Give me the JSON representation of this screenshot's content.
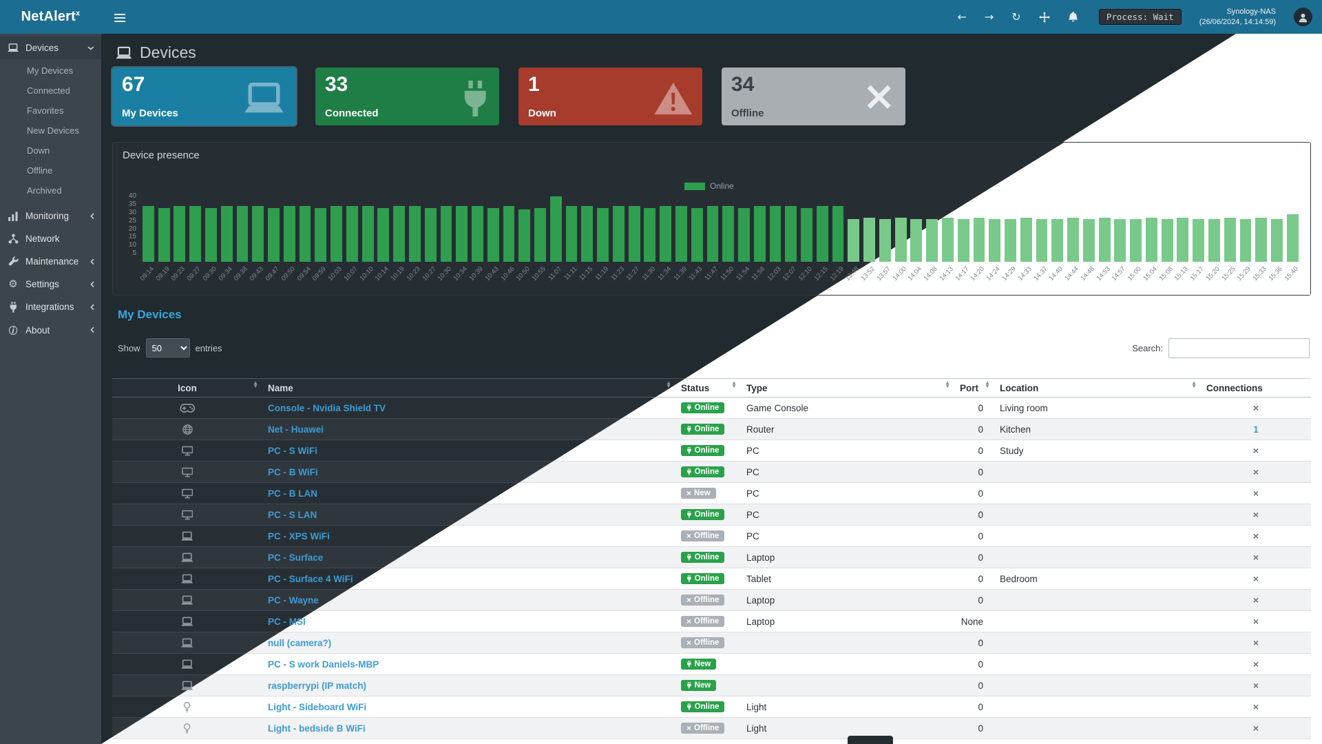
{
  "topbar": {
    "brand": "NetAlert",
    "brand_sup": "x",
    "process_label": "Process: Wait",
    "host": "Synology-NAS",
    "timestamp": "(26/06/2024, 14:14:59)",
    "icons": [
      "back-arrow-icon",
      "forward-arrow-icon",
      "refresh-icon",
      "move-icon",
      "bell-icon"
    ]
  },
  "sidebar": {
    "items": [
      {
        "label": "Devices",
        "icon": "laptop-icon",
        "active": true,
        "chevron": "down",
        "children": [
          "My Devices",
          "Connected",
          "Favorites",
          "New Devices",
          "Down",
          "Offline",
          "Archived"
        ]
      },
      {
        "label": "Monitoring",
        "icon": "chart-icon",
        "chevron": "left"
      },
      {
        "label": "Network",
        "icon": "network-icon",
        "chevron": ""
      },
      {
        "label": "Maintenance",
        "icon": "wrench-icon",
        "chevron": "left"
      },
      {
        "label": "Settings",
        "icon": "gear-icon",
        "chevron": "left"
      },
      {
        "label": "Integrations",
        "icon": "plug-icon",
        "chevron": "left"
      },
      {
        "label": "About",
        "icon": "info-icon",
        "chevron": "left"
      }
    ]
  },
  "page": {
    "title": "Devices"
  },
  "cards": [
    {
      "value": "67",
      "label": "My Devices",
      "icon": "laptop-icon",
      "color": "#1b7fa4"
    },
    {
      "value": "33",
      "label": "Connected",
      "icon": "plug-icon",
      "color": "#1e7e46"
    },
    {
      "value": "1",
      "label": "Down",
      "icon": "warning-icon",
      "color": "#a73b2c"
    },
    {
      "value": "34",
      "label": "Offline",
      "icon": "x-icon",
      "color": "#a9aeb3"
    }
  ],
  "chart_data": {
    "type": "bar",
    "title": "Device presence",
    "legend": [
      {
        "label": "Online",
        "color": "#2f9e4f"
      }
    ],
    "legend_position": "top-center",
    "grid": false,
    "ylim": [
      0,
      40
    ],
    "yticks": [
      40,
      35,
      30,
      25,
      20,
      15,
      10,
      5
    ],
    "bar_color": "#2f9e4f",
    "bar_color_light_region": "#79c98b",
    "light_region_from_index": 45,
    "x": [
      "09:14",
      "09:19",
      "09:23",
      "09:27",
      "09:30",
      "09:34",
      "09:38",
      "09:43",
      "09:47",
      "09:50",
      "09:54",
      "09:59",
      "10:03",
      "10:07",
      "10:10",
      "10:14",
      "10:19",
      "10:23",
      "10:27",
      "10:30",
      "10:34",
      "10:39",
      "10:43",
      "10:46",
      "10:50",
      "10:55",
      "11:07",
      "11:11",
      "11:15",
      "11:19",
      "11:23",
      "11:27",
      "11:30",
      "11:34",
      "11:39",
      "11:43",
      "11:47",
      "11:50",
      "11:54",
      "11:58",
      "12:03",
      "12:07",
      "12:10",
      "12:15",
      "12:19",
      "13:48",
      "13:52",
      "13:57",
      "14:00",
      "14:04",
      "14:08",
      "14:13",
      "14:17",
      "14:20",
      "14:24",
      "14:29",
      "14:33",
      "14:37",
      "14:40",
      "14:44",
      "14:48",
      "14:53",
      "14:57",
      "15:00",
      "15:04",
      "15:08",
      "15:13",
      "15:17",
      "15:20",
      "15:25",
      "15:29",
      "15:33",
      "15:36",
      "15:40"
    ],
    "series": [
      {
        "name": "Online",
        "values": [
          34,
          33,
          34,
          34,
          33,
          34,
          34,
          34,
          33,
          34,
          34,
          33,
          34,
          34,
          34,
          33,
          34,
          34,
          33,
          34,
          34,
          34,
          33,
          34,
          32,
          33,
          40,
          34,
          34,
          33,
          34,
          34,
          33,
          34,
          34,
          33,
          34,
          34,
          33,
          34,
          34,
          34,
          33,
          34,
          34,
          26,
          27,
          26,
          27,
          26,
          26,
          27,
          26,
          27,
          26,
          26,
          27,
          26,
          26,
          27,
          26,
          27,
          26,
          26,
          27,
          26,
          27,
          26,
          26,
          27,
          26,
          27,
          26,
          29
        ]
      }
    ]
  },
  "table": {
    "title": "My Devices",
    "show_label": "Show",
    "page_size": "50",
    "entries_label": "entries",
    "search_label": "Search:",
    "search_value": "",
    "columns": [
      "Icon",
      "Name",
      "Status",
      "Type",
      "Port",
      "Location",
      "Connections"
    ],
    "rows": [
      {
        "icon": "gamepad-icon",
        "name": "Console - Nvidia Shield TV",
        "status": "Online",
        "variant": "green",
        "type": "Game Console",
        "port": "0",
        "location": "Living room",
        "connections": "x"
      },
      {
        "icon": "globe-icon",
        "name": "Net - Huawei",
        "status": "Online",
        "variant": "green",
        "type": "Router",
        "port": "0",
        "location": "Kitchen",
        "connections": "1"
      },
      {
        "icon": "desktop-icon",
        "name": "PC - S WiFi",
        "status": "Online",
        "variant": "green",
        "type": "PC",
        "port": "0",
        "location": "Study",
        "connections": "x"
      },
      {
        "icon": "desktop-icon",
        "name": "PC - B WiFi",
        "status": "Online",
        "variant": "green",
        "type": "PC",
        "port": "0",
        "location": "",
        "connections": "x"
      },
      {
        "icon": "desktop-icon",
        "name": "PC - B LAN",
        "status": "New",
        "variant": "gray",
        "type": "PC",
        "port": "0",
        "location": "",
        "connections": "x"
      },
      {
        "icon": "desktop-icon",
        "name": "PC - S LAN",
        "status": "Online",
        "variant": "green",
        "type": "PC",
        "port": "0",
        "location": "",
        "connections": "x"
      },
      {
        "icon": "laptop-icon",
        "name": "PC - XPS WiFi",
        "status": "Offline",
        "variant": "gray",
        "type": "PC",
        "port": "0",
        "location": "",
        "connections": "x"
      },
      {
        "icon": "laptop-icon",
        "name": "PC - Surface",
        "status": "Online",
        "variant": "green",
        "type": "Laptop",
        "port": "0",
        "location": "",
        "connections": "x"
      },
      {
        "icon": "laptop-icon",
        "name": "PC - Surface 4 WiFi",
        "status": "Online",
        "variant": "green",
        "type": "Tabl​et",
        "port": "0",
        "location": "Bedroom",
        "connections": "x"
      },
      {
        "icon": "laptop-icon",
        "name": "PC - Wayne",
        "status": "Offline",
        "variant": "gray",
        "type": "Laptop",
        "port": "0",
        "location": "",
        "connections": "x"
      },
      {
        "icon": "laptop-icon",
        "name": "PC - MSI",
        "status": "Offline",
        "variant": "gray",
        "type": "Laptop",
        "port": "None",
        "location": "",
        "connections": "x"
      },
      {
        "icon": "laptop-icon",
        "name": "null (camera?)",
        "status": "Offline",
        "variant": "gray",
        "type": "",
        "port": "0",
        "location": "",
        "connections": "x"
      },
      {
        "icon": "laptop-icon",
        "name": "PC - S work Daniels-MBP",
        "status": "New",
        "variant": "green",
        "type": "",
        "port": "0",
        "location": "",
        "connections": "x"
      },
      {
        "icon": "laptop-icon",
        "name": "raspberrypi (IP match)",
        "status": "New",
        "variant": "green",
        "type": "",
        "port": "0",
        "location": "",
        "connections": "x"
      },
      {
        "icon": "bulb-icon",
        "name": "Light - Sideboard WiFi",
        "status": "Online",
        "variant": "green",
        "type": "Light",
        "port": "0",
        "location": "",
        "connections": "x"
      },
      {
        "icon": "bulb-icon",
        "name": "Light - bedside B WiFi",
        "status": "Offline",
        "variant": "gray",
        "type": "Light",
        "port": "0",
        "location": "",
        "connections": "x"
      }
    ]
  }
}
